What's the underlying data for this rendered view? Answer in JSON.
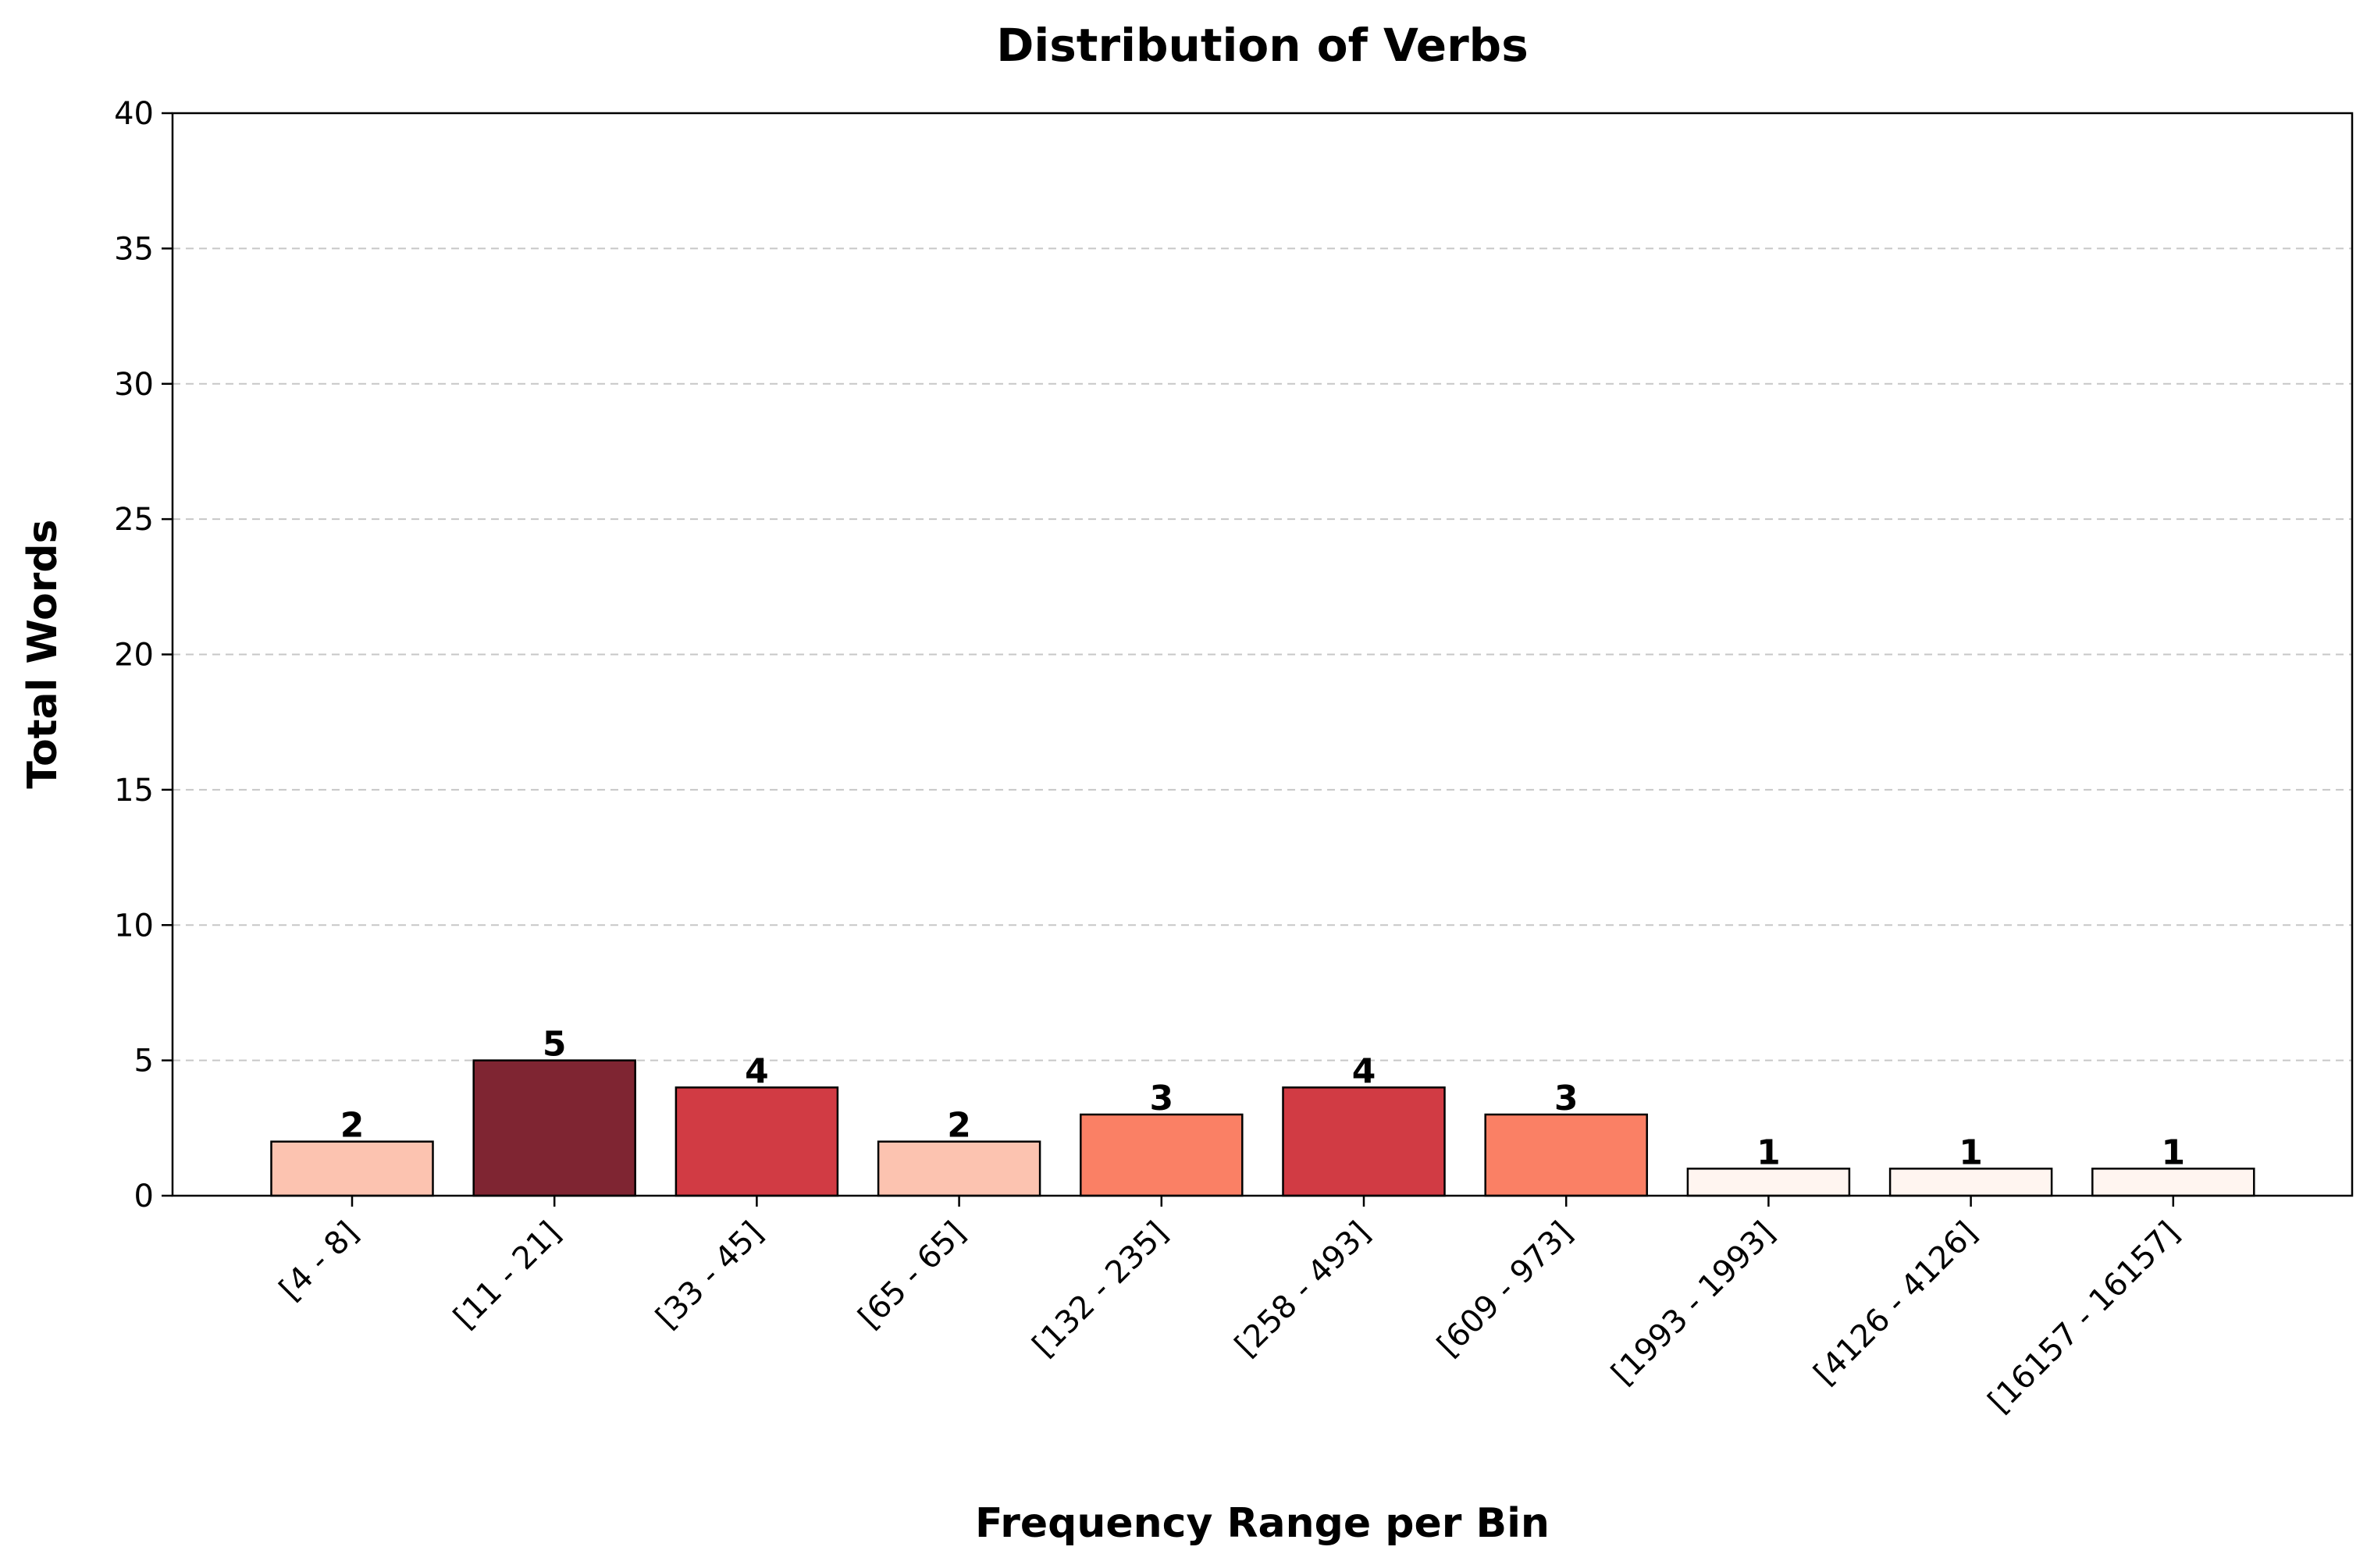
{
  "chart_data": {
    "type": "bar",
    "title": "Distribution of Verbs",
    "xlabel": "Frequency Range per Bin",
    "ylabel": "Total Words",
    "categories": [
      "[4 - 8]",
      "[11 - 21]",
      "[33 - 45]",
      "[65 - 65]",
      "[132 - 235]",
      "[258 - 493]",
      "[609 - 973]",
      "[1993 - 1993]",
      "[4126 - 4126]",
      "[16157 - 16157]"
    ],
    "values": [
      2,
      5,
      4,
      2,
      3,
      4,
      3,
      1,
      1,
      1
    ],
    "bar_colors": [
      "#fcc3b0",
      "#7f2532",
      "#d13b44",
      "#fcc3b0",
      "#fa8065",
      "#d13b44",
      "#fa8065",
      "#fff5f0",
      "#fff5f0",
      "#fff5f0"
    ],
    "ylim": [
      0,
      40
    ],
    "yticks": [
      0,
      5,
      10,
      15,
      20,
      25,
      30,
      35,
      40
    ],
    "grid": "y-dashed",
    "legend": "none"
  }
}
